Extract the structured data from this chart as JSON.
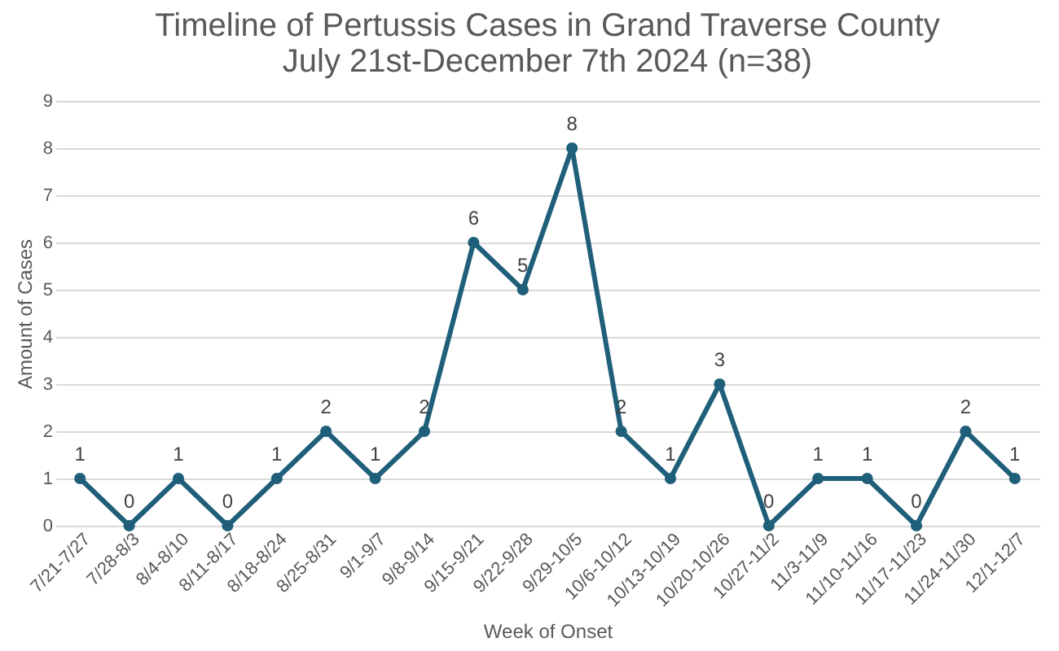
{
  "chart_data": {
    "type": "line",
    "title": "Timeline of Pertussis Cases in Grand Traverse County\nJuly 21st-December 7th 2024 (n=38)",
    "xlabel": "Week of Onset",
    "ylabel": "Amount of Cases",
    "categories": [
      "7/21-7/27",
      "7/28-8/3",
      "8/4-8/10",
      "8/11-8/17",
      "8/18-8/24",
      "8/25-8/31",
      "9/1-9/7",
      "9/8-9/14",
      "9/15-9/21",
      "9/22-9/28",
      "9/29-10/5",
      "10/6-10/12",
      "10/13-10/19",
      "10/20-10/26",
      "10/27-11/2",
      "11/3-11/9",
      "11/10-11/16",
      "11/17-11/23",
      "11/24-11/30",
      "12/1-12/7"
    ],
    "series": [
      {
        "color": "#1f5f7a",
        "values": [
          1,
          0,
          1,
          0,
          1,
          2,
          1,
          2,
          6,
          5,
          8,
          2,
          1,
          3,
          0,
          1,
          1,
          0,
          2,
          1
        ]
      }
    ],
    "ylim": [
      0,
      9
    ],
    "yticks": [
      0,
      1,
      2,
      3,
      4,
      5,
      6,
      7,
      8,
      9
    ],
    "grid": "y",
    "data_labels": true,
    "marker": "circle",
    "line_style": "solid"
  }
}
